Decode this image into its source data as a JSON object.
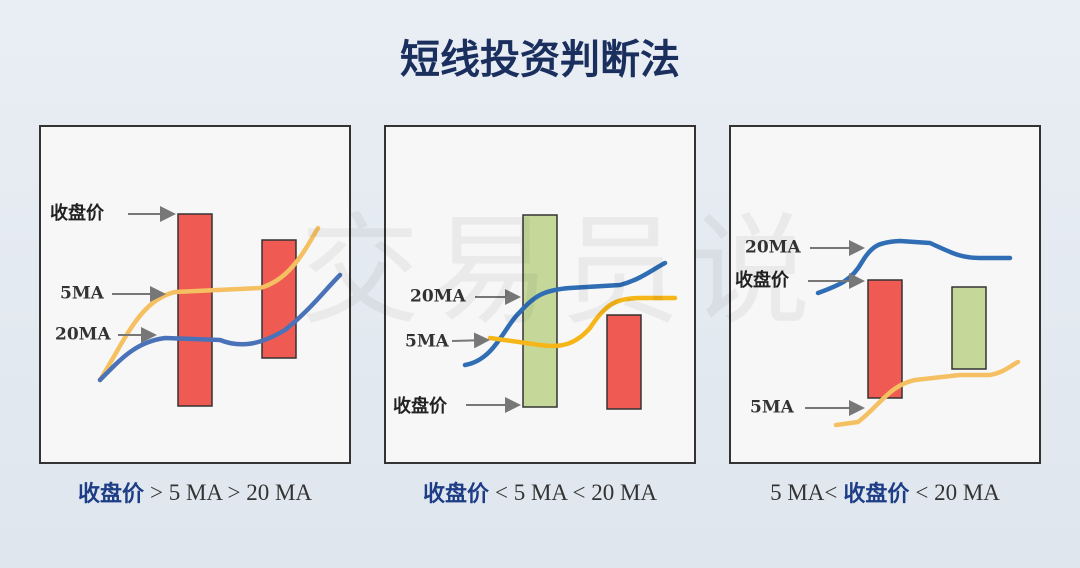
{
  "header": {
    "title": "短线投资判断法"
  },
  "watermark": "交易员说",
  "panels": [
    {
      "labels": [
        "收盘价",
        "5MA",
        "20MA"
      ],
      "caption": [
        "收盘价",
        "> 5 MA > 20 MA"
      ]
    },
    {
      "labels": [
        "20MA",
        "5MA",
        "收盘价"
      ],
      "caption": [
        "收盘价",
        "< 5 MA < 20 MA"
      ]
    },
    {
      "labels": [
        "20MA",
        "收盘价",
        "5MA"
      ],
      "caption": [
        "5 MA<",
        "收盘价",
        "< 20 MA"
      ]
    }
  ]
}
